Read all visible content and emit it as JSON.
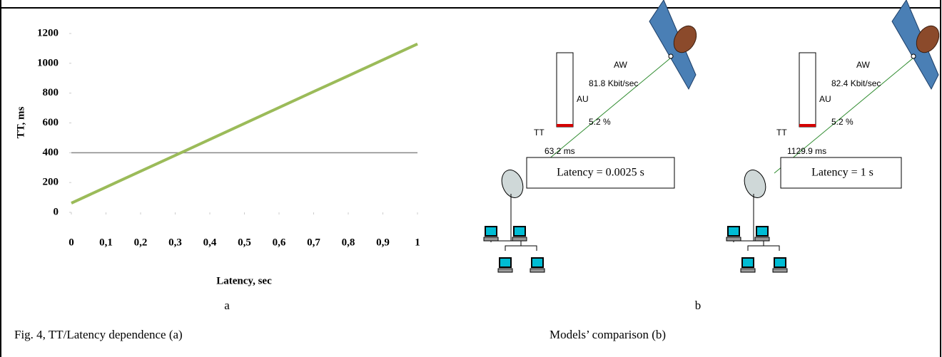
{
  "chart_data": {
    "type": "line",
    "xlabel": "Latency, sec",
    "ylabel": "TT, ms",
    "x": [
      0,
      0.1,
      0.2,
      0.3,
      0.4,
      0.5,
      0.6,
      0.7,
      0.8,
      0.9,
      1
    ],
    "series": [
      {
        "name": "TT",
        "color": "#9bbb59",
        "values": [
          62,
          169,
          276,
          382,
          489,
          596,
          703,
          810,
          916,
          1023,
          1130
        ]
      }
    ],
    "xlim": [
      0,
      1
    ],
    "ylim": [
      0,
      1200
    ],
    "xticks": [
      0,
      {
        "value": 0.1,
        "label": "0,1"
      },
      {
        "value": 0.2,
        "label": "0,2"
      },
      {
        "value": 0.3,
        "label": "0,3"
      },
      {
        "value": 0.4,
        "label": "0,4"
      },
      {
        "value": 0.5,
        "label": "0,5"
      },
      {
        "value": 0.6,
        "label": "0,6"
      },
      {
        "value": 0.7,
        "label": "0,7"
      },
      {
        "value": 0.8,
        "label": "0,8"
      },
      {
        "value": 0.9,
        "label": "0,9"
      },
      1
    ],
    "yticks": [
      0,
      200,
      400,
      600,
      800,
      1000,
      1200
    ],
    "grid": false
  },
  "panel_a": {
    "label": "a",
    "caption": "Fig. 4, TT/Latency dependence (a)"
  },
  "panel_b": {
    "label": "b",
    "caption": "Models’ comparison (b)",
    "models": [
      {
        "aw": "AW",
        "throughput": "81.8 Kbit/sec",
        "au": "AU",
        "utilization": "5.2 %",
        "tt": "TT",
        "tt_value": "63.2 ms",
        "latency": "Latency = 0.0025 s"
      },
      {
        "aw": "AW",
        "throughput": "82.4 Kbit/sec",
        "au": "AU",
        "utilization": "5.2 %",
        "tt": "TT",
        "tt_value": "1129.9 ms",
        "latency": "Latency = 1 s"
      }
    ]
  }
}
